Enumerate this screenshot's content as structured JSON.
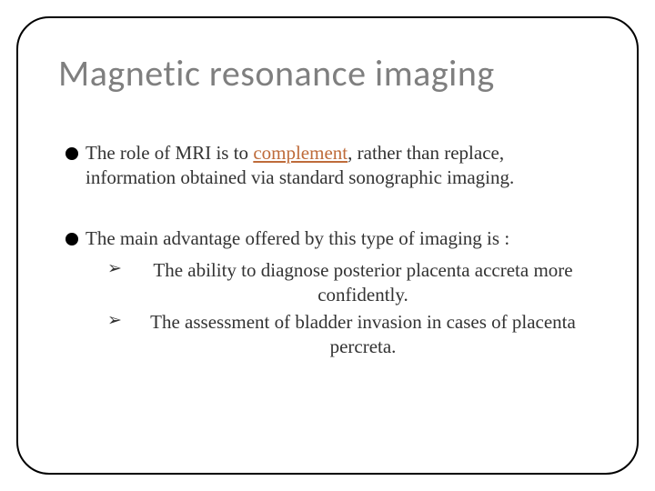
{
  "slide": {
    "title": "Magnetic resonance imaging",
    "title_color": "#7f7f7f",
    "title_fontsize": 40,
    "border_color": "#000000",
    "border_radius": 36,
    "background_color": "#ffffff",
    "body_font": "Garamond",
    "body_fontsize": 21,
    "body_color": "#333333",
    "accent_color": "#be6b3a",
    "bullets": [
      {
        "pre": "The role of MRI is to ",
        "emph": "complement",
        "post": ", rather than replace, information obtained via standard sonographic imaging."
      },
      {
        "text": "The main advantage offered by this type of imaging is :",
        "subitems": [
          "The ability to diagnose posterior placenta accreta more confidently.",
          " The assessment of bladder invasion in cases of placenta percreta."
        ]
      }
    ]
  }
}
